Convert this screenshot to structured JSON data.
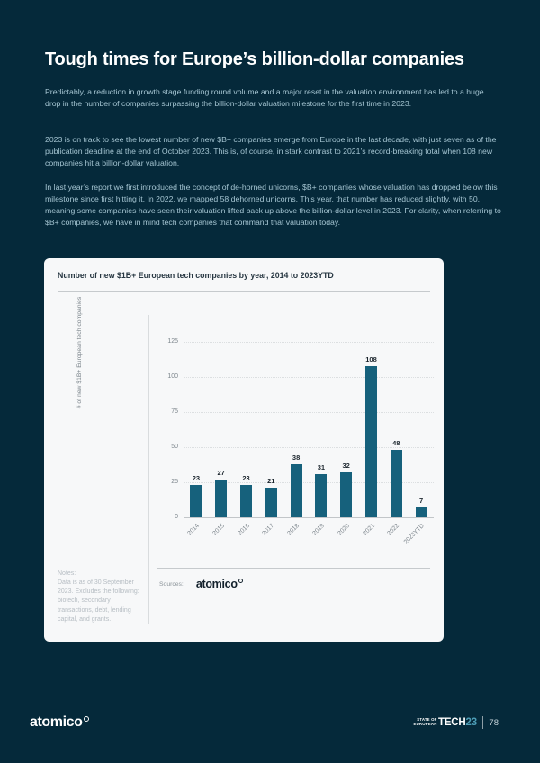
{
  "page": {
    "title": "Tough times for Europe’s billion-dollar companies",
    "paragraphs": [
      "Predictably, a reduction in growth stage funding round volume and a major reset in the valuation environment has led to a huge drop in the number of companies surpassing the billion-dollar valuation milestone for the first time in 2023.",
      "2023 is on track to see the lowest number of new $B+ companies emerge from Europe in the last decade, with just seven as of the publication deadline at the end of October 2023. This is, of course, in stark contrast to 2021’s record-breaking total when 108 new companies hit a billion-dollar valuation.",
      "In last year’s report we first introduced the concept of de-horned unicorns, $B+ companies whose valuation has dropped below this milestone since first hitting it. In 2022, we mapped 58 dehorned unicorns. This year, that number has reduced slightly, with 50, meaning some companies have seen their valuation lifted back up above the billion-dollar level in 2023. For clarity, when referring to $B+ companies, we have in mind tech companies that command that valuation today."
    ]
  },
  "card": {
    "title": "Number of new $1B+ European tech companies by year, 2014 to 2023YTD",
    "notes": {
      "label": "Notes:",
      "text": "Data is as of 30 September 2023. Excludes the following: biotech, secondary transactions, debt, lending capital, and grants."
    },
    "sources": {
      "label": "Sources:",
      "logo_text": "atomico"
    }
  },
  "chart_data": {
    "type": "bar",
    "title": "Number of new $1B+ European tech companies by year, 2014 to 2023YTD",
    "categories": [
      "2014",
      "2015",
      "2016",
      "2017",
      "2018",
      "2019",
      "2020",
      "2021",
      "2022",
      "2023YTD"
    ],
    "values": [
      23,
      27,
      23,
      21,
      38,
      31,
      32,
      108,
      48,
      7
    ],
    "xlabel": "",
    "ylabel": "# of new $1B+ European tech companies",
    "yticks": [
      0,
      25,
      50,
      75,
      100,
      125
    ],
    "ylim": [
      0,
      125
    ],
    "grid": "horizontal-dotted",
    "legend": "none",
    "data_labels": true
  },
  "footer": {
    "logo_text": "atomico",
    "brand": {
      "line1": "STATE OF",
      "line2": "EUROPEAN",
      "tech": "TECH",
      "year": "23"
    },
    "page_number": "78"
  },
  "colors": {
    "background": "#05293a",
    "body_text": "#a5c5d2",
    "card_background": "#f7f8f9",
    "bar": "#16617c",
    "accent_year": "#4c9cb5"
  }
}
